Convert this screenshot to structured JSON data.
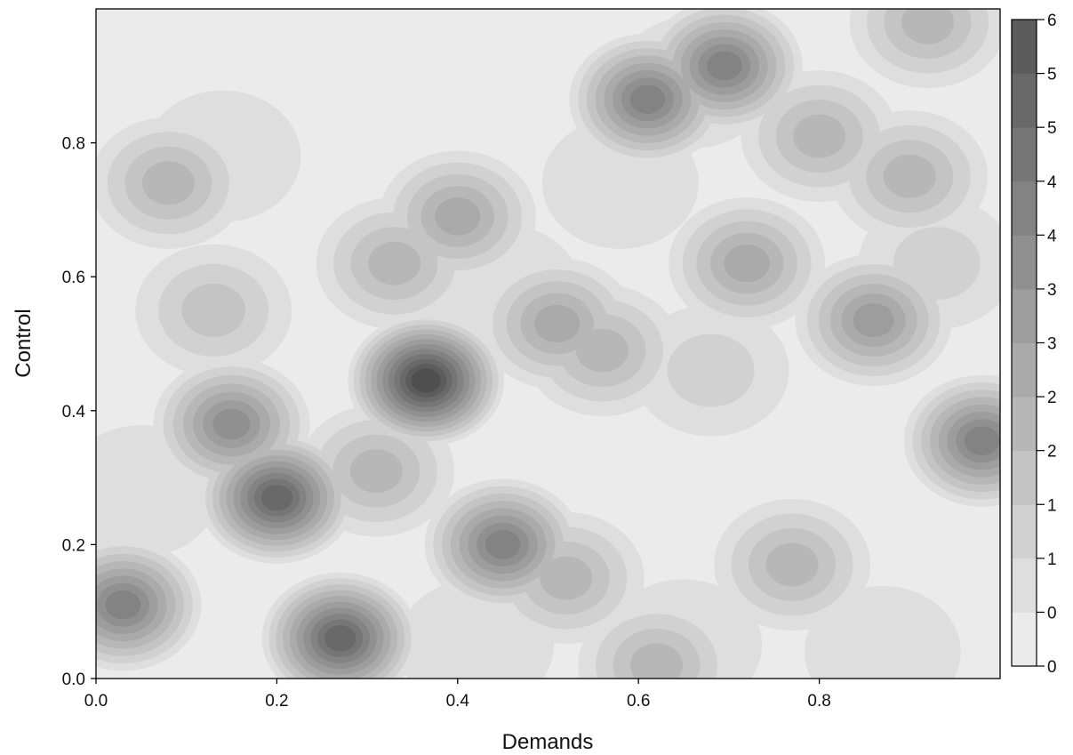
{
  "chart_data": {
    "type": "heatmap",
    "subtype": "filled-contour density",
    "title": "",
    "xlabel": "Demands",
    "ylabel": "Control",
    "xlim": [
      0.0,
      1.0
    ],
    "ylim": [
      0.0,
      1.0
    ],
    "x_ticks": [
      "0.0",
      "0.2",
      "0.4",
      "0.6",
      "0.8"
    ],
    "y_ticks": [
      "0.0",
      "0.2",
      "0.4",
      "0.6",
      "0.8"
    ],
    "colorbar": {
      "range": [
        0,
        6
      ],
      "tick_labels": [
        "0",
        "0",
        "1",
        "1",
        "2",
        "2",
        "3",
        "3",
        "4",
        "4",
        "5",
        "5",
        "6"
      ],
      "levels": 12,
      "color_low": "#ebebeb",
      "color_high": "#4f4f4f"
    },
    "grid": false,
    "hotspots": [
      {
        "x": 0.03,
        "y": 0.11,
        "density": 4.2
      },
      {
        "x": 0.27,
        "y": 0.06,
        "density": 5.0
      },
      {
        "x": 0.2,
        "y": 0.27,
        "density": 5.2
      },
      {
        "x": 0.15,
        "y": 0.38,
        "density": 3.6
      },
      {
        "x": 0.31,
        "y": 0.31,
        "density": 1.8
      },
      {
        "x": 0.365,
        "y": 0.445,
        "density": 5.9
      },
      {
        "x": 0.45,
        "y": 0.2,
        "density": 3.8
      },
      {
        "x": 0.52,
        "y": 0.15,
        "density": 2.0
      },
      {
        "x": 0.62,
        "y": 0.02,
        "density": 2.2
      },
      {
        "x": 0.13,
        "y": 0.55,
        "density": 1.6
      },
      {
        "x": 0.08,
        "y": 0.74,
        "density": 1.8
      },
      {
        "x": 0.33,
        "y": 0.62,
        "density": 1.8
      },
      {
        "x": 0.4,
        "y": 0.69,
        "density": 2.6
      },
      {
        "x": 0.51,
        "y": 0.53,
        "density": 2.6
      },
      {
        "x": 0.56,
        "y": 0.49,
        "density": 2.2
      },
      {
        "x": 0.61,
        "y": 0.865,
        "density": 4.0
      },
      {
        "x": 0.695,
        "y": 0.915,
        "density": 4.2
      },
      {
        "x": 0.66,
        "y": 0.89,
        "density": 1.2
      },
      {
        "x": 0.72,
        "y": 0.62,
        "density": 2.4
      },
      {
        "x": 0.8,
        "y": 0.81,
        "density": 2.0
      },
      {
        "x": 0.86,
        "y": 0.535,
        "density": 3.0
      },
      {
        "x": 0.9,
        "y": 0.75,
        "density": 2.0
      },
      {
        "x": 0.92,
        "y": 0.98,
        "density": 2.2
      },
      {
        "x": 0.98,
        "y": 0.355,
        "density": 3.8
      },
      {
        "x": 0.77,
        "y": 0.17,
        "density": 1.8
      },
      {
        "x": 0.14,
        "y": 0.78,
        "density": 0.7
      },
      {
        "x": 0.45,
        "y": 0.58,
        "density": 0.6
      },
      {
        "x": 0.58,
        "y": 0.74,
        "density": 0.5
      },
      {
        "x": 0.93,
        "y": 0.62,
        "density": 0.9
      },
      {
        "x": 0.68,
        "y": 0.46,
        "density": 0.8
      },
      {
        "x": 0.42,
        "y": 0.05,
        "density": 0.7
      },
      {
        "x": 0.87,
        "y": 0.04,
        "density": 0.6
      },
      {
        "x": 0.05,
        "y": 0.28,
        "density": 0.5
      },
      {
        "x": 0.65,
        "y": 0.05,
        "density": 0.5
      }
    ]
  }
}
